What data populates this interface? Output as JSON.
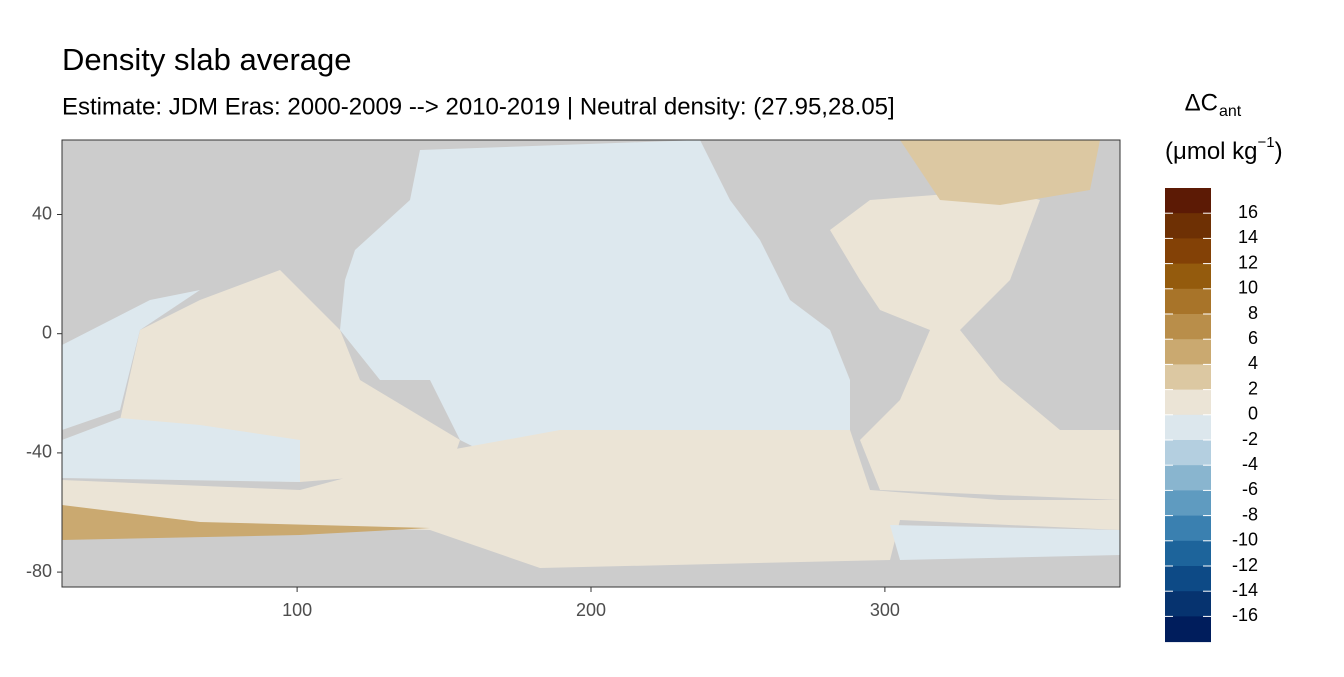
{
  "chart_data": {
    "type": "raster-map",
    "title": "Density slab average",
    "subtitle": "Estimate: JDM Eras: 2000-2009 --> 2010-2019 | Neutral density: (27.95,28.05]",
    "xlim": [
      20,
      380
    ],
    "xticks": [
      100,
      200,
      300
    ],
    "ylim": [
      -85,
      65
    ],
    "yticks": [
      40,
      0,
      -40,
      -80
    ],
    "legend": {
      "title_main": "ΔC",
      "title_sub": "ant",
      "unit_open": "(μmol kg",
      "unit_exp": "−1",
      "unit_close": ")",
      "breaks": [
        16,
        14,
        12,
        10,
        8,
        6,
        4,
        2,
        0,
        -2,
        -4,
        -6,
        -8,
        -10,
        -12,
        -14,
        -16
      ],
      "colors": [
        "#5c1a05",
        "#6e3004",
        "#834106",
        "#945b0d",
        "#a87429",
        "#b98e4a",
        "#caa970",
        "#dcc8a2",
        "#ebe4d6",
        "#dce7ed",
        "#b4cfe0",
        "#89b5cf",
        "#5f9bc0",
        "#3a80b0",
        "#1d649b",
        "#0d4a86",
        "#06336f",
        "#001d5c"
      ]
    }
  }
}
